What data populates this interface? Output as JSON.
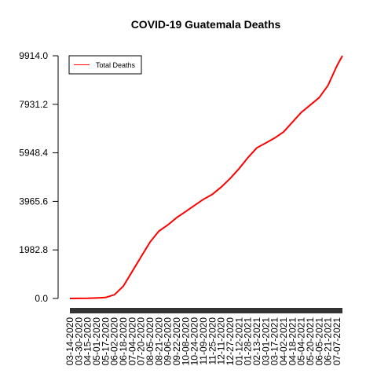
{
  "chart_data": {
    "type": "line",
    "title": "COVID-19 Guatemala Deaths",
    "xlabel": "",
    "ylabel": "",
    "ylim": [
      0,
      9914
    ],
    "yticks": [
      "0.0",
      "1982.8",
      "3965.6",
      "5948.4",
      "7931.2",
      "9914.0"
    ],
    "yticks_values": [
      0,
      1982.8,
      3965.6,
      5948.4,
      7931.2,
      9914
    ],
    "xticks": [
      "03-14-2020",
      "03-30-2020",
      "04-15-2020",
      "05-01-2020",
      "05-17-2020",
      "06-02-2020",
      "06-18-2020",
      "07-04-2020",
      "07-20-2020",
      "08-05-2020",
      "08-21-2020",
      "09-06-2020",
      "09-22-2020",
      "10-08-2020",
      "10-24-2020",
      "11-09-2020",
      "11-25-2020",
      "12-11-2020",
      "12-27-2020",
      "01-12-2021",
      "01-28-2021",
      "02-13-2021",
      "03-01-2021",
      "03-17-2021",
      "04-02-2021",
      "04-18-2021",
      "05-04-2021",
      "05-20-2021",
      "06-05-2021",
      "06-21-2021",
      "07-07-2021"
    ],
    "series": [
      {
        "name": "Total Deaths",
        "color": "#ff0000",
        "x": [
          "03-14-2020",
          "03-30-2020",
          "04-15-2020",
          "05-01-2020",
          "05-17-2020",
          "06-02-2020",
          "06-18-2020",
          "07-04-2020",
          "07-20-2020",
          "08-05-2020",
          "08-21-2020",
          "09-06-2020",
          "09-22-2020",
          "10-08-2020",
          "10-24-2020",
          "11-09-2020",
          "11-25-2020",
          "12-11-2020",
          "12-27-2020",
          "01-12-2021",
          "01-28-2021",
          "02-13-2021",
          "03-01-2021",
          "03-17-2021",
          "04-02-2021",
          "04-18-2021",
          "05-04-2021",
          "05-20-2021",
          "06-05-2021",
          "06-21-2021",
          "07-07-2021",
          "07-17-2021"
        ],
        "values": [
          0,
          3,
          7,
          20,
          40,
          150,
          500,
          1100,
          1700,
          2300,
          2750,
          3000,
          3300,
          3550,
          3800,
          4050,
          4250,
          4550,
          4900,
          5300,
          5750,
          6150,
          6350,
          6550,
          6800,
          7200,
          7600,
          7900,
          8200,
          8700,
          9500,
          9914
        ]
      }
    ],
    "legend": {
      "position": "top-left",
      "entries": [
        "Total Deaths"
      ]
    },
    "grid": false
  }
}
